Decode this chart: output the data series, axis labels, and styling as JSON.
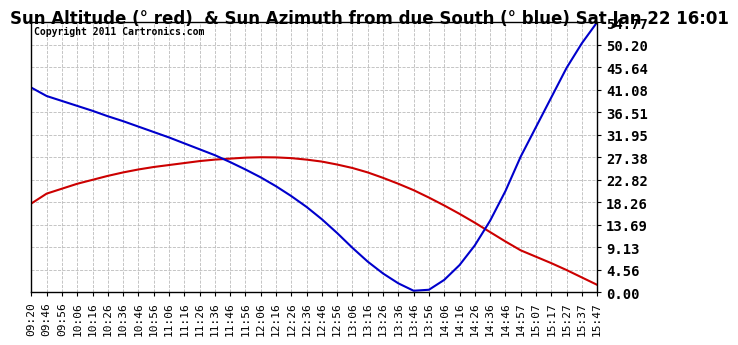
{
  "title": "Sun Altitude (° red)  & Sun Azimuth from due South (° blue) Sat Jan 22 16:01",
  "copyright_text": "Copyright 2011 Cartronics.com",
  "y_ticks": [
    0.0,
    4.56,
    9.13,
    13.69,
    18.26,
    22.82,
    27.38,
    31.95,
    36.51,
    41.08,
    45.64,
    50.2,
    54.77
  ],
  "x_labels": [
    "09:20",
    "09:46",
    "09:56",
    "10:06",
    "10:16",
    "10:26",
    "10:36",
    "10:46",
    "10:56",
    "11:06",
    "11:16",
    "11:26",
    "11:36",
    "11:46",
    "11:56",
    "12:06",
    "12:16",
    "12:26",
    "12:36",
    "12:46",
    "12:56",
    "13:06",
    "13:16",
    "13:26",
    "13:36",
    "13:46",
    "13:56",
    "14:06",
    "14:16",
    "14:26",
    "14:36",
    "14:46",
    "14:57",
    "15:07",
    "15:17",
    "15:27",
    "15:37",
    "15:47"
  ],
  "background_color": "#ffffff",
  "plot_bg_color": "#ffffff",
  "grid_color": "#bbbbbb",
  "title_fontsize": 12,
  "copyright_fontsize": 7,
  "tick_fontsize": 8,
  "ytick_fontsize": 10,
  "blue_line_color": "#0000cc",
  "red_line_color": "#cc0000",
  "red_data": [
    18.0,
    20.0,
    21.0,
    22.0,
    22.8,
    23.6,
    24.3,
    24.9,
    25.4,
    25.8,
    26.2,
    26.6,
    26.9,
    27.1,
    27.3,
    27.38,
    27.35,
    27.2,
    26.9,
    26.5,
    25.9,
    25.2,
    24.3,
    23.2,
    22.0,
    20.7,
    19.2,
    17.6,
    15.9,
    14.1,
    12.2,
    10.3,
    8.5,
    7.2,
    5.9,
    4.5,
    3.0,
    1.5
  ],
  "blue_data": [
    41.5,
    39.8,
    38.8,
    37.8,
    36.8,
    35.7,
    34.7,
    33.6,
    32.5,
    31.4,
    30.2,
    29.0,
    27.8,
    26.4,
    24.9,
    23.3,
    21.5,
    19.5,
    17.3,
    14.8,
    12.0,
    9.0,
    6.2,
    3.8,
    1.8,
    0.3,
    0.5,
    2.5,
    5.5,
    9.5,
    14.5,
    20.5,
    27.5,
    33.5,
    39.5,
    45.5,
    50.5,
    54.77
  ]
}
